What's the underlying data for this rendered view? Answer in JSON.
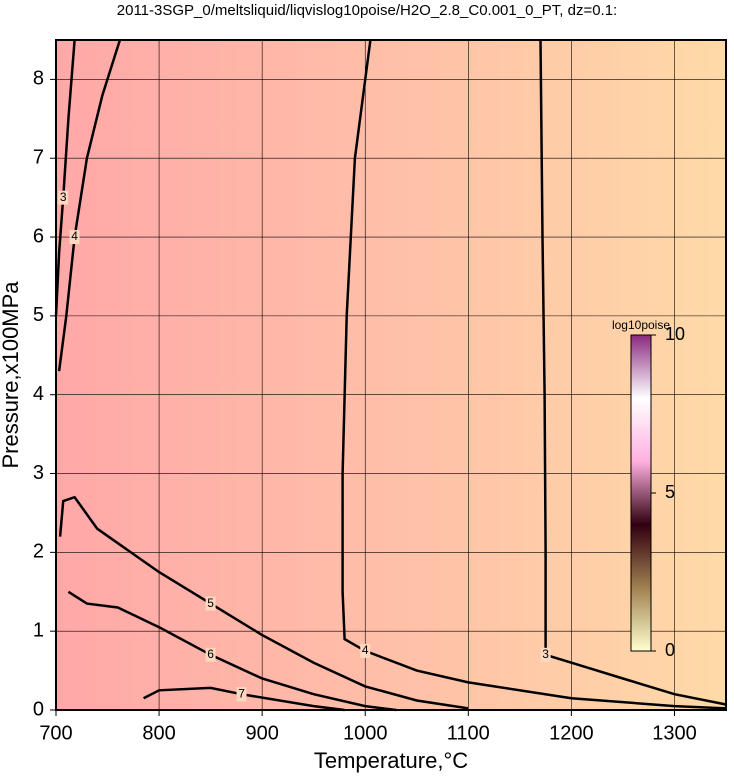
{
  "chart_data": {
    "type": "contour",
    "title": "2011-3SGP_0/meltsliquid/liqvislog10poise/H2O_2.8_C0.001_0_PT, dz=0.1:",
    "x_label": "Temperature,°C",
    "y_label": "Pressure,x100MPa",
    "xlim": [
      700,
      1350
    ],
    "xticks": [
      700,
      800,
      900,
      1000,
      1100,
      1200,
      1300
    ],
    "ylim": [
      0,
      8.5
    ],
    "yticks": [
      0,
      1,
      2,
      3,
      4,
      5,
      6,
      7,
      8
    ],
    "grid": true,
    "contours": [
      {
        "level": 3,
        "x": [
          1170,
          1172,
          1174,
          1175,
          1175,
          1200,
          1250,
          1300,
          1350
        ],
        "y": [
          8.5,
          6,
          4,
          2,
          0.7,
          0.6,
          0.4,
          0.2,
          0.07
        ]
      },
      {
        "level": 4,
        "x": [
          1005,
          990,
          982,
          978,
          978,
          980,
          1000,
          1050,
          1100,
          1200,
          1300,
          1350
        ],
        "y": [
          8.5,
          7,
          5,
          3,
          1.5,
          0.9,
          0.75,
          0.5,
          0.35,
          0.15,
          0.05,
          0.02
        ]
      },
      {
        "level": 5,
        "x": [
          704,
          707,
          718,
          740,
          800,
          850,
          900,
          950,
          1000,
          1050,
          1100
        ],
        "y": [
          2.2,
          2.65,
          2.7,
          2.3,
          1.75,
          1.35,
          0.95,
          0.6,
          0.3,
          0.12,
          0.02
        ]
      },
      {
        "level": 6,
        "x": [
          712,
          730,
          760,
          800,
          850,
          900,
          950,
          1000,
          1030
        ],
        "y": [
          1.5,
          1.35,
          1.3,
          1.05,
          0.7,
          0.4,
          0.2,
          0.05,
          0
        ]
      },
      {
        "level": 7,
        "x": [
          785,
          800,
          850,
          880,
          950,
          980
        ],
        "y": [
          0.15,
          0.25,
          0.28,
          0.2,
          0.05,
          0
        ]
      },
      {
        "level": 4,
        "x": [
          762,
          745,
          730,
          718,
          710,
          703
        ],
        "y": [
          8.5,
          7.8,
          7,
          6,
          5,
          4.3
        ]
      },
      {
        "level": 3,
        "x": [
          718,
          712,
          707,
          703,
          700
        ],
        "y": [
          8.5,
          7.5,
          6.5,
          5.8,
          5
        ]
      }
    ],
    "colorbar": {
      "label": "log10poise",
      "lim": [
        0,
        10
      ],
      "ticks": [
        0,
        5,
        10
      ],
      "colors": [
        "#ffffd0",
        "#a08050",
        "#300010",
        "#ffb0e0",
        "#ffffff",
        "#8a2a80"
      ]
    }
  }
}
